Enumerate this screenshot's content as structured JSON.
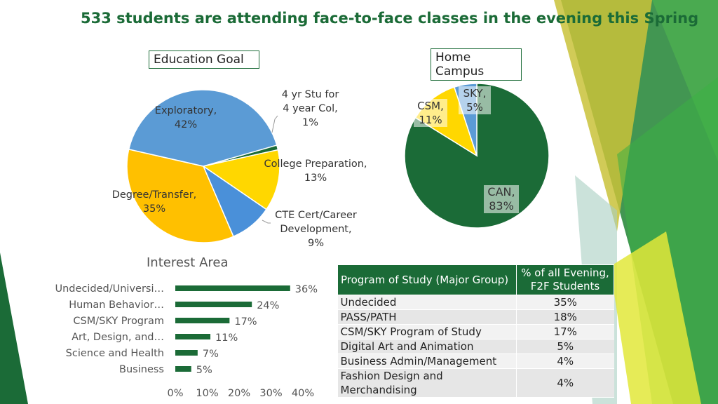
{
  "title": "533 students are attending face-to-face classes in the evening this Spring",
  "colors": {
    "dark_green": "#1b6b37",
    "blue": "#5b9bd5",
    "gold": "#ffc000",
    "yellow": "#ffd700"
  },
  "education_goal": {
    "label": "Education Goal",
    "slice_labels": [
      {
        "line1": "Exploratory,",
        "line2": "42%"
      },
      {
        "line1": "4 yr Stu for",
        "line2": "4 year Col,",
        "line3": "1%"
      },
      {
        "line1": "College Preparation,",
        "line2": "13%"
      },
      {
        "line1": "CTE Cert/Career",
        "line2": "Development,",
        "line3": "9%"
      },
      {
        "line1": "Degree/Transfer,",
        "line2": "35%"
      }
    ]
  },
  "home_campus": {
    "label": "Home Campus",
    "slice_labels": [
      {
        "line1": "CAN,",
        "line2": "83%"
      },
      {
        "line1": "CSM,",
        "line2": "11%"
      },
      {
        "line1": "SKY,",
        "line2": "5%"
      }
    ]
  },
  "interest_area": {
    "title": "Interest Area",
    "categories": [
      "Undecided/Universi…",
      "Human Behavior…",
      "CSM/SKY Program",
      "Art, Design, and…",
      "Science and Health",
      "Business"
    ],
    "value_labels": [
      "36%",
      "24%",
      "17%",
      "11%",
      "7%",
      "5%"
    ],
    "x_ticks": [
      "0%",
      "10%",
      "20%",
      "30%",
      "40%"
    ]
  },
  "program_table": {
    "headers": [
      "Program of Study (Major Group)",
      "% of all Evening, F2F Students"
    ],
    "rows": [
      [
        "Undecided",
        "35%"
      ],
      [
        "PASS/PATH",
        "18%"
      ],
      [
        "CSM/SKY Program of Study",
        "17%"
      ],
      [
        "Digital Art and Animation",
        "5%"
      ],
      [
        "Business Admin/Management",
        "4%"
      ],
      [
        "Fashion Design and Merchandising",
        "4%"
      ]
    ]
  },
  "chart_data": [
    {
      "type": "pie",
      "title": "Education Goal",
      "categories": [
        "Exploratory",
        "4 yr Stu for 4 year Col",
        "College Preparation",
        "CTE Cert/Career Development",
        "Degree/Transfer"
      ],
      "values": [
        42,
        1,
        13,
        9,
        35
      ],
      "colors": [
        "#5b9bd5",
        "#1b6b37",
        "#ffd700",
        "#4a90d9",
        "#ffc000"
      ]
    },
    {
      "type": "pie",
      "title": "Home Campus",
      "categories": [
        "CAN",
        "CSM",
        "SKY"
      ],
      "values": [
        83,
        11,
        5
      ],
      "colors": [
        "#1b6b37",
        "#ffd700",
        "#5b9bd5"
      ]
    },
    {
      "type": "bar",
      "orientation": "horizontal",
      "title": "Interest Area",
      "categories": [
        "Undecided/Universi…",
        "Human Behavior…",
        "CSM/SKY Program",
        "Art, Design, and…",
        "Science and Health",
        "Business"
      ],
      "values": [
        36,
        24,
        17,
        11,
        7,
        5
      ],
      "xlim": [
        0,
        40
      ],
      "color": "#1b6b37"
    },
    {
      "type": "table",
      "title": "Program of Study (Major Group)",
      "columns": [
        "Program of Study (Major Group)",
        "% of all Evening, F2F Students"
      ],
      "rows": [
        [
          "Undecided",
          35
        ],
        [
          "PASS/PATH",
          18
        ],
        [
          "CSM/SKY Program of Study",
          17
        ],
        [
          "Digital Art and Animation",
          5
        ],
        [
          "Business Admin/Management",
          4
        ],
        [
          "Fashion Design and Merchandising",
          4
        ]
      ]
    }
  ]
}
